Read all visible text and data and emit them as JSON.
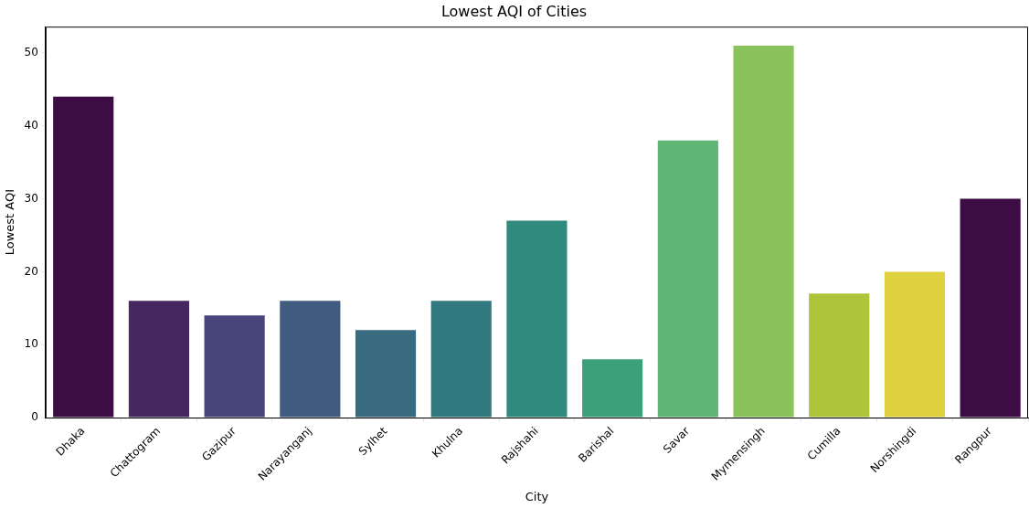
{
  "chart_data": {
    "type": "bar",
    "title": "Lowest AQI of Cities",
    "xlabel": "City",
    "ylabel": "Lowest AQI",
    "categories": [
      "Dhaka",
      "Chattogram",
      "Gazipur",
      "Narayanganj",
      "Sylhet",
      "Khulna",
      "Rajshahi",
      "Barishal",
      "Savar",
      "Mymensingh",
      "Cumilla",
      "Norshingdi",
      "Rangpur"
    ],
    "values": [
      44,
      16,
      14,
      16,
      12,
      16,
      27,
      8,
      38,
      51,
      17,
      20,
      30
    ],
    "colors": [
      "#3d0c45",
      "#47285e",
      "#48457a",
      "#415c80",
      "#386b7f",
      "#327a7f",
      "#308a7d",
      "#3ba17a",
      "#5fb574",
      "#8ac35c",
      "#aec43a",
      "#e0d13f",
      "#3d0c45"
    ],
    "ylim": [
      0,
      53.6
    ],
    "yticks": [
      0,
      10,
      20,
      30,
      40,
      50
    ],
    "grid": false,
    "legend": false
  }
}
